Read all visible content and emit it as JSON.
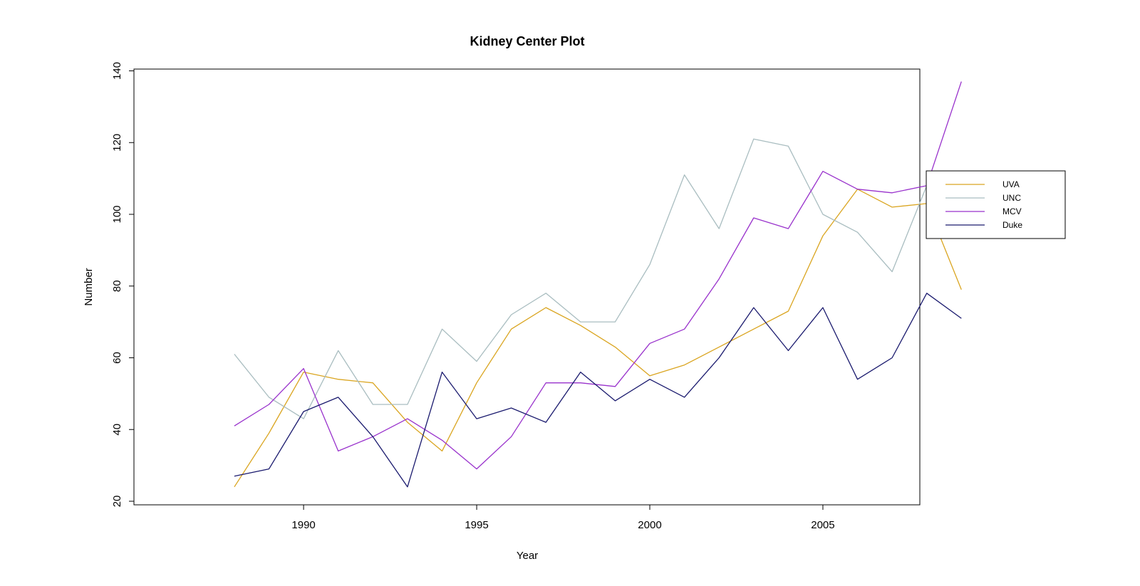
{
  "chart_data": {
    "type": "line",
    "title": "Kidney Center Plot",
    "xlabel": "Year",
    "ylabel": "Number",
    "x": [
      1988,
      1989,
      1990,
      1991,
      1992,
      1993,
      1994,
      1995,
      1996,
      1997,
      1998,
      1999,
      2000,
      2001,
      2002,
      2003,
      2004,
      2005,
      2006,
      2007,
      2008,
      2009
    ],
    "xlim": [
      1985.1,
      2007.8
    ],
    "ylim": [
      19,
      140.5
    ],
    "x_ticks": [
      1990,
      1995,
      2000,
      2005
    ],
    "y_ticks": [
      20,
      40,
      60,
      80,
      100,
      120,
      140
    ],
    "grid": false,
    "legend_position": "right",
    "series": [
      {
        "name": "UVA",
        "color": "#DAA520",
        "values": [
          24,
          39,
          56,
          54,
          53,
          42,
          34,
          53,
          68,
          74,
          69,
          63,
          55,
          58,
          63,
          68,
          73,
          94,
          107,
          102,
          103,
          79
        ]
      },
      {
        "name": "UNC",
        "color": "#A9BDC0",
        "values": [
          61,
          49,
          43,
          62,
          47,
          47,
          68,
          59,
          72,
          78,
          70,
          70,
          86,
          111,
          96,
          121,
          119,
          100,
          95,
          84,
          108,
          105
        ]
      },
      {
        "name": "MCV",
        "color": "#9932CC",
        "values": [
          41,
          47,
          57,
          34,
          38,
          43,
          37,
          29,
          38,
          53,
          53,
          52,
          64,
          68,
          82,
          99,
          96,
          112,
          107,
          106,
          108,
          137
        ]
      },
      {
        "name": "Duke",
        "color": "#1A1A6E",
        "values": [
          27,
          29,
          45,
          49,
          38,
          24,
          56,
          43,
          46,
          42,
          56,
          48,
          54,
          49,
          60,
          74,
          62,
          74,
          54,
          60,
          78,
          71
        ]
      }
    ]
  }
}
